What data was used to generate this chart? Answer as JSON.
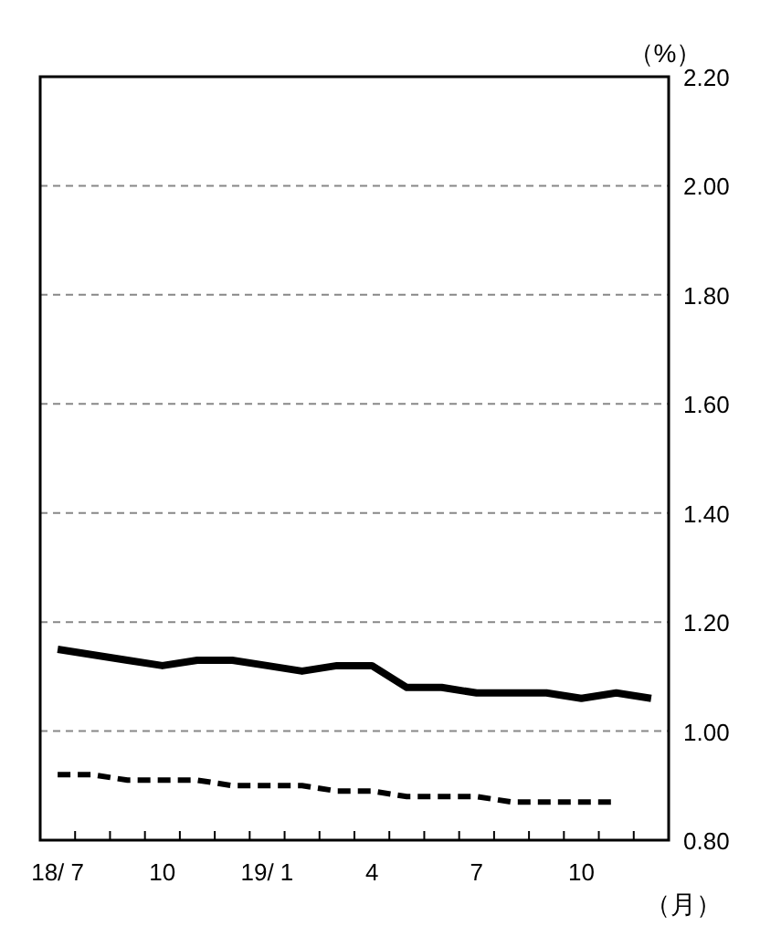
{
  "chart_data": {
    "type": "line",
    "ylabel": "（%）",
    "xlabel": "（月）",
    "categories": [
      "18/ 7",
      null,
      null,
      "10",
      null,
      null,
      "19/ 1",
      null,
      null,
      "4",
      null,
      null,
      "7",
      null,
      null,
      "10",
      null,
      null
    ],
    "series": [
      {
        "color": "#000000",
        "line_style": "solid",
        "values": [
          1.15,
          1.14,
          1.13,
          1.12,
          1.13,
          1.13,
          1.12,
          1.11,
          1.12,
          1.12,
          1.08,
          1.08,
          1.07,
          1.07,
          1.07,
          1.06,
          1.07,
          1.06
        ]
      },
      {
        "color": "#000000",
        "line_style": "dashed",
        "values": [
          0.92,
          0.92,
          0.91,
          0.91,
          0.91,
          0.9,
          0.9,
          0.9,
          0.89,
          0.89,
          0.88,
          0.88,
          0.88,
          0.87,
          0.87,
          0.87,
          0.87,
          null
        ]
      }
    ],
    "ylim": [
      0.8,
      2.2
    ],
    "yticks": [
      {
        "value": 0.8,
        "label": "0.80"
      },
      {
        "value": 1.0,
        "label": "1.00"
      },
      {
        "value": 1.2,
        "label": "1.20"
      },
      {
        "value": 1.4,
        "label": "1.40"
      },
      {
        "value": 1.6,
        "label": "1.60"
      },
      {
        "value": 1.8,
        "label": "1.80"
      },
      {
        "value": 2.0,
        "label": "2.00"
      },
      {
        "value": 2.2,
        "label": "2.20"
      }
    ],
    "grid": "y",
    "marker": "none"
  }
}
